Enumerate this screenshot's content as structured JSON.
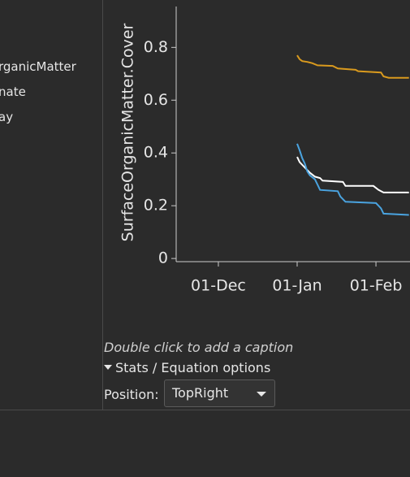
{
  "sidebar": {
    "items": [
      "rganicMatter",
      "nate",
      "ay"
    ]
  },
  "chart_data": {
    "type": "line",
    "y_label": "SurfaceOrganicMatter.Cover",
    "xlim": [
      -16.6,
      75.4
    ],
    "xticks": [
      {
        "value": 0,
        "label": "01-Dec"
      },
      {
        "value": 31,
        "label": "01-Jan"
      },
      {
        "value": 62,
        "label": "01-Feb"
      }
    ],
    "ylim": [
      -0.012,
      0.955
    ],
    "yticks": [
      0,
      0.2,
      0.4,
      0.6,
      0.8
    ],
    "series": [
      {
        "color": "#d99a1e",
        "x": [
          31,
          32,
          33,
          35,
          37,
          39,
          45,
          47,
          54,
          55,
          64,
          65,
          67,
          75
        ],
        "values": [
          0.77,
          0.755,
          0.748,
          0.745,
          0.74,
          0.732,
          0.73,
          0.72,
          0.715,
          0.71,
          0.705,
          0.69,
          0.685,
          0.685
        ]
      },
      {
        "color": "#ffffff",
        "x": [
          31,
          32,
          34,
          36,
          38,
          40,
          41,
          49,
          50,
          61,
          63,
          65,
          75
        ],
        "values": [
          0.385,
          0.365,
          0.345,
          0.325,
          0.31,
          0.305,
          0.295,
          0.29,
          0.275,
          0.275,
          0.26,
          0.25,
          0.25
        ]
      },
      {
        "color": "#4aa3df",
        "x": [
          31,
          32,
          33,
          34,
          35,
          36,
          38,
          39,
          40,
          47,
          48,
          50,
          62,
          64,
          65,
          75
        ],
        "values": [
          0.435,
          0.41,
          0.38,
          0.36,
          0.33,
          0.315,
          0.3,
          0.28,
          0.26,
          0.255,
          0.235,
          0.215,
          0.21,
          0.19,
          0.17,
          0.165
        ]
      }
    ]
  },
  "caption_hint": "Double click to add a caption",
  "stats_toggle": "Stats / Equation options",
  "position": {
    "label": "Position:",
    "value": "TopRight"
  }
}
